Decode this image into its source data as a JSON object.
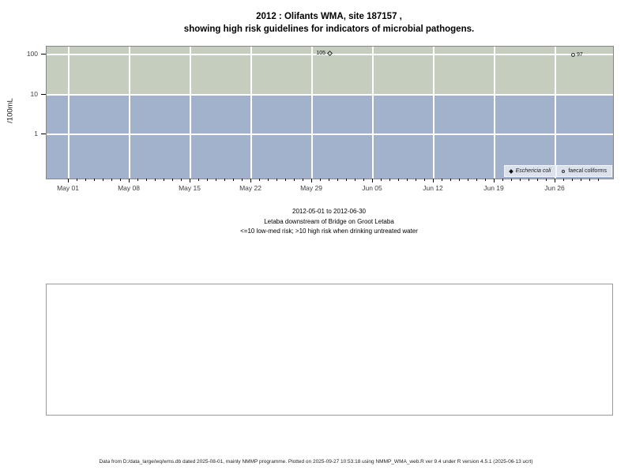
{
  "title": {
    "line1": "2012 : Olifants WMA, site 187157 ,",
    "line2": "showing high risk guidelines for indicators of microbial pathogens."
  },
  "chart_data": {
    "type": "scatter",
    "title": "2012 : Olifants WMA, site 187157 , showing high risk guidelines for indicators of microbial pathogens.",
    "x_start": "2012-05-01",
    "x_end": "2012-06-30",
    "x_tick_labels": [
      "May 01",
      "May 08",
      "May 15",
      "May 22",
      "May 29",
      "Jun 05",
      "Jun 12",
      "Jun 19",
      "Jun 26"
    ],
    "y_axis": {
      "label": "/100mL",
      "scale": "log10",
      "ticks": [
        100,
        10,
        1
      ],
      "ylim": [
        0.07,
        160
      ]
    },
    "grid": true,
    "bands": [
      {
        "name": "high-risk-band",
        "condition": ">10",
        "color": "#c4cdbe"
      },
      {
        "name": "low-med-risk-band",
        "condition": "<=10",
        "color": "#a2b2cd"
      }
    ],
    "series": [
      {
        "name": "Eschericia coli",
        "marker": "diamond-open",
        "legend_marker": "diamond-filled",
        "points": [
          {
            "date": "2012-05-31",
            "value": 105,
            "label": "105",
            "label_side": "left"
          }
        ]
      },
      {
        "name": "faecal coliforms",
        "marker": "circle-open",
        "legend_marker": "circle-open",
        "points": [
          {
            "date": "2012-06-28",
            "value": 97,
            "label": "97",
            "label_side": "right"
          }
        ]
      }
    ],
    "legend_position": "bottom-right"
  },
  "caption": {
    "line1": "2012-05-01 to 2012-06-30",
    "line2": "Letaba downstream of Bridge on Groot Letaba",
    "line3": "<=10 low-med risk; >10 high risk when drinking untreated water"
  },
  "footer": {
    "text": "Data from D:/data_large/wq/wms.db dated 2025-08-01, mainly NMMP programme. Plotted on 2025-09-27 10:53:18 using NMMP_WMA_web.R ver 9.4 under R version 4.5.1 (2025-06-13 ucrt)"
  }
}
